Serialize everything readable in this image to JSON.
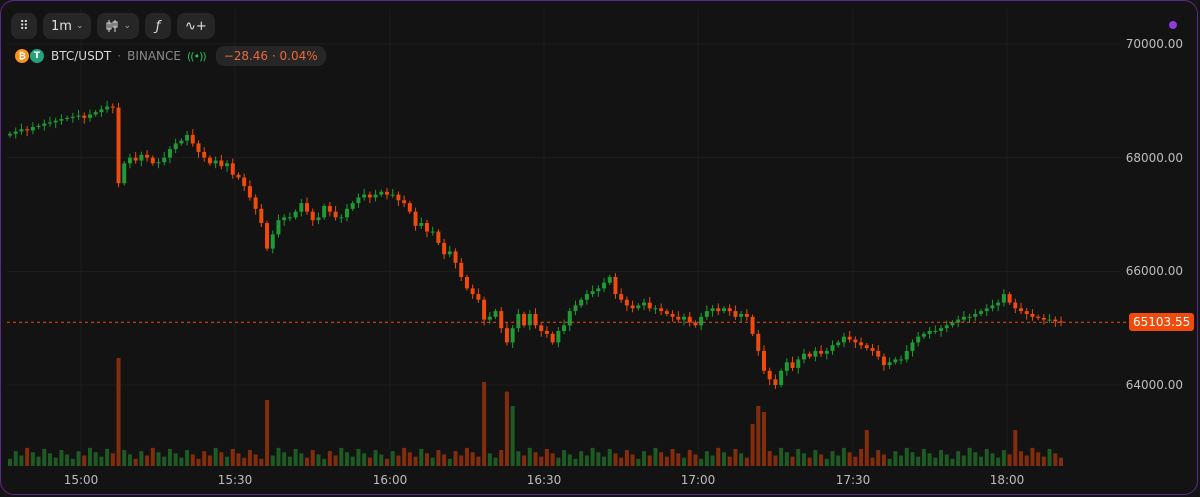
{
  "toolbar": {
    "grid_icon": "grid-dots-icon",
    "interval": "1m",
    "chart_type_icon": "candles-icon",
    "indicators_icon": "function-icon",
    "compare_icon": "add-series-icon"
  },
  "legend": {
    "pair": "BTC/USDT",
    "separator": "·",
    "exchange": "BINANCE",
    "change": "−28.46 · 0.04%"
  },
  "last_price_label": "65103.55",
  "colors": {
    "up": "#1f9a34",
    "down": "#f04a0c",
    "accent": "#8e3ae0"
  },
  "chart_data": {
    "type": "candlestick",
    "interval": "1m",
    "y_ticks": [
      "70000.00",
      "68000.00",
      "66000.00",
      "64000.00"
    ],
    "y_tick_values": [
      70000,
      68000,
      66000,
      64000
    ],
    "x_ticks": [
      "15:00",
      "15:30",
      "16:00",
      "16:30",
      "17:00",
      "17:30",
      "18:00"
    ],
    "last_price": 65103.55,
    "ylim": [
      62700,
      70400
    ],
    "candles_close": [
      68420,
      68460,
      68500,
      68480,
      68540,
      68560,
      68600,
      68620,
      68650,
      68680,
      68700,
      68720,
      68740,
      68700,
      68760,
      68800,
      68850,
      68900,
      68880,
      67550,
      67900,
      68000,
      67950,
      68050,
      68000,
      67900,
      67920,
      68000,
      68150,
      68250,
      68300,
      68400,
      68250,
      68100,
      68000,
      67900,
      67950,
      67850,
      67900,
      67700,
      67650,
      67500,
      67300,
      67100,
      66850,
      66400,
      66650,
      66900,
      66950,
      66950,
      67050,
      67200,
      67050,
      66900,
      66950,
      67150,
      67050,
      66950,
      66950,
      67100,
      67200,
      67300,
      67350,
      67300,
      67350,
      67400,
      67350,
      67350,
      67250,
      67200,
      67050,
      66800,
      66850,
      66700,
      66700,
      66500,
      66300,
      66350,
      66150,
      65900,
      65700,
      65600,
      65500,
      65150,
      65200,
      65300,
      65000,
      64750,
      65000,
      65250,
      65050,
      65250,
      65050,
      64950,
      64900,
      64750,
      64950,
      65050,
      65300,
      65400,
      65500,
      65600,
      65650,
      65700,
      65800,
      65900,
      65600,
      65500,
      65400,
      65350,
      65400,
      65450,
      65350,
      65350,
      65300,
      65250,
      65200,
      65150,
      65200,
      65100,
      65050,
      65200,
      65300,
      65350,
      65300,
      65350,
      65300,
      65200,
      65250,
      65200,
      64900,
      64600,
      64250,
      64100,
      64000,
      64250,
      64400,
      64300,
      64450,
      64550,
      64500,
      64600,
      64550,
      64600,
      64700,
      64750,
      64850,
      64800,
      64750,
      64700,
      64650,
      64600,
      64500,
      64350,
      64400,
      64450,
      64450,
      64600,
      64750,
      64850,
      64900,
      64950,
      64950,
      65000,
      65050,
      65100,
      65150,
      65200,
      65200,
      65250,
      65300,
      65350,
      65400,
      65450,
      65600,
      65450,
      65350,
      65300,
      65250,
      65200,
      65180,
      65150,
      65150,
      65120,
      65103
    ]
  }
}
